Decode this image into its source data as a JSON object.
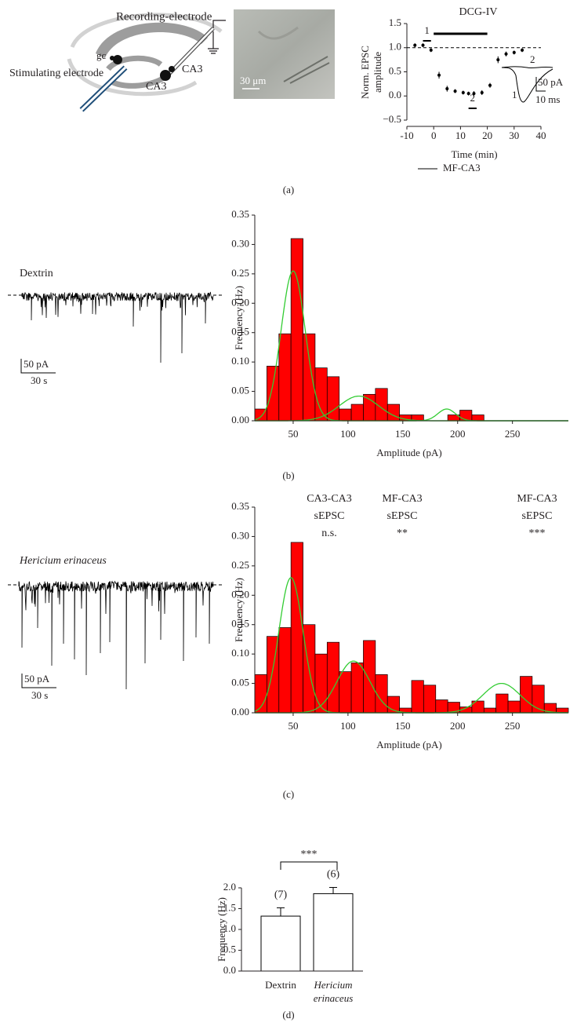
{
  "panel_labels": [
    "(a)",
    "(b)",
    "(c)",
    "(d)"
  ],
  "schematic": {
    "labels": [
      "Recording-electrode",
      "gc",
      "Stimulating electrode",
      "CA3",
      "CA3"
    ],
    "scale_bar": "30 μm"
  },
  "traces": [
    {
      "label": "Dextrin",
      "scale_y": "50 pA",
      "scale_x": "30 s"
    },
    {
      "label": "Hericium erinaceus",
      "scale_y": "50 pA",
      "scale_x": "30 s"
    }
  ],
  "chart_data": [
    {
      "type": "scatter",
      "ylabel": [
        "Norm. EPSC",
        "amplitude"
      ],
      "xlabel": "Time (min)",
      "x": [
        -7,
        -4,
        -1,
        2,
        5,
        8,
        11,
        13,
        15,
        18,
        21,
        24,
        27,
        30,
        33
      ],
      "series": [
        {
          "name": "MF-CA3",
          "color": "#000000",
          "values": [
            1.05,
            1.05,
            0.95,
            0.43,
            0.15,
            0.1,
            0.07,
            0.05,
            0.05,
            0.07,
            0.22,
            0.75,
            0.87,
            0.9,
            0.95
          ],
          "errors": [
            0.04,
            0.04,
            0.04,
            0.07,
            0.06,
            0.04,
            0.04,
            0.04,
            0.05,
            0.05,
            0.05,
            0.07,
            0.05,
            0.04,
            0.04
          ]
        }
      ],
      "xlim": [
        -10,
        40
      ],
      "xticks": [
        -10,
        0,
        10,
        20,
        30,
        40
      ],
      "ylim": [
        -0.5,
        1.5
      ],
      "yticks": [
        {
          "value": -0.5,
          "label": "−0.5"
        },
        {
          "value": 0,
          "label": "0.0"
        },
        0.5,
        {
          "value": 1,
          "label": "1.0"
        },
        1.5
      ],
      "reference_line": 1.0,
      "drug": {
        "label": "DCG-IV",
        "start": 0,
        "end": 20
      },
      "periods": [
        {
          "label": "1",
          "start": -4,
          "end": -1
        },
        {
          "label": "2",
          "start": 13,
          "end": 16
        }
      ],
      "inset": {
        "trace_labels": [
          "1",
          "2"
        ],
        "scale_y": "50 pA",
        "scale_x": "10 ms"
      }
    },
    {
      "type": "histogram",
      "ylabel": "Frequency (Hz)",
      "xlabel": "Amplitude (pA)",
      "bins": [
        15,
        26,
        37,
        48,
        59,
        70,
        81,
        92,
        103,
        114,
        125,
        136,
        147,
        158,
        169,
        180,
        191,
        202,
        213,
        224
      ],
      "values": [
        0.02,
        0.093,
        0.148,
        0.31,
        0.148,
        0.09,
        0.075,
        0.02,
        0.028,
        0.045,
        0.055,
        0.028,
        0.01,
        0.01,
        0,
        0,
        0.01,
        0.018,
        0.01
      ],
      "color": "#ff0000",
      "fit_color": "#33cc33",
      "fits": [
        {
          "mean": 50,
          "sd": 11,
          "amp": 0.255
        },
        {
          "mean": 110,
          "sd": 18,
          "amp": 0.042
        },
        {
          "mean": 190,
          "sd": 8,
          "amp": 0.02
        }
      ],
      "xlim": [
        15,
        301
      ],
      "xticks": [
        50,
        100,
        150,
        200,
        250
      ],
      "ylim": [
        0,
        0.35
      ],
      "yticks": [
        {
          "value": 0,
          "label": "0.00"
        },
        0.05,
        {
          "value": 0.1,
          "label": "0.10"
        },
        0.15,
        {
          "value": 0.2,
          "label": "0.20"
        },
        0.25,
        {
          "value": 0.3,
          "label": "0.30"
        },
        0.35
      ]
    },
    {
      "type": "histogram",
      "ylabel": "Frequency (Hz)",
      "xlabel": "Amplitude (pA)",
      "bins": [
        15,
        26,
        37,
        48,
        59,
        70,
        81,
        92,
        103,
        114,
        125,
        136,
        147,
        158,
        169,
        180,
        191,
        202,
        213,
        224,
        235,
        246,
        257,
        268,
        279,
        290,
        301
      ],
      "values": [
        0.065,
        0.13,
        0.145,
        0.29,
        0.15,
        0.1,
        0.12,
        0.07,
        0.085,
        0.123,
        0.065,
        0.028,
        0.008,
        0.055,
        0.047,
        0.022,
        0.018,
        0.01,
        0.02,
        0.008,
        0.032,
        0.02,
        0.062,
        0.047,
        0.016,
        0.008
      ],
      "color": "#ff0000",
      "fit_color": "#33cc33",
      "fits": [
        {
          "mean": 48,
          "sd": 11,
          "amp": 0.23
        },
        {
          "mean": 105,
          "sd": 15,
          "amp": 0.088
        },
        {
          "mean": 240,
          "sd": 17,
          "amp": 0.05
        }
      ],
      "annotations": [
        [
          "CA3-CA3",
          "sEPSC",
          "n.s."
        ],
        [
          "MF-CA3",
          "sEPSC",
          "**"
        ],
        [
          "MF-CA3",
          "sEPSC",
          "***"
        ]
      ],
      "xlim": [
        15,
        301
      ],
      "xticks": [
        50,
        100,
        150,
        200,
        250
      ],
      "ylim": [
        0,
        0.35
      ],
      "yticks": [
        {
          "value": 0,
          "label": "0.00"
        },
        0.05,
        {
          "value": 0.1,
          "label": "0.10"
        },
        0.15,
        {
          "value": 0.2,
          "label": "0.20"
        },
        0.25,
        {
          "value": 0.3,
          "label": "0.30"
        },
        0.35
      ]
    },
    {
      "type": "bar",
      "ylabel": "Frequency (Hz)",
      "categories": [
        "Dextrin",
        "Hericium erinaceus"
      ],
      "values": [
        1.32,
        1.86
      ],
      "errors": [
        0.2,
        0.15
      ],
      "n_labels": [
        "(7)",
        "(6)"
      ],
      "significance": "***",
      "color": "#ffffff",
      "ylim": [
        0,
        2
      ],
      "yticks": [
        {
          "value": 0,
          "label": "0.0"
        },
        0.5,
        {
          "value": 1,
          "label": "1.0"
        },
        1.5,
        {
          "value": 2,
          "label": "2.0"
        }
      ]
    }
  ]
}
